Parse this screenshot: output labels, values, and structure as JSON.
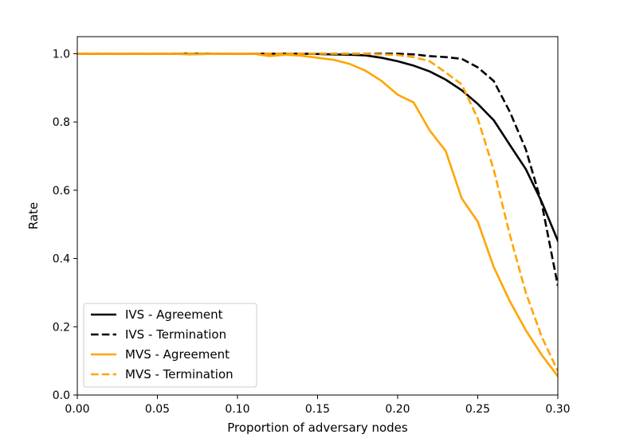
{
  "chart_data": {
    "type": "line",
    "title": "",
    "xlabel": "Proportion of adversary nodes",
    "ylabel": "Rate",
    "xlim": [
      0.0,
      0.3
    ],
    "ylim": [
      0.0,
      1.05
    ],
    "xticks": [
      0.0,
      0.05,
      0.1,
      0.15,
      0.2,
      0.25,
      0.3
    ],
    "xtick_labels": [
      "0.00",
      "0.05",
      "0.10",
      "0.15",
      "0.20",
      "0.25",
      "0.30"
    ],
    "yticks": [
      0.0,
      0.2,
      0.4,
      0.6,
      0.8,
      1.0
    ],
    "ytick_labels": [
      "0.0",
      "0.2",
      "0.4",
      "0.6",
      "0.8",
      "1.0"
    ],
    "grid": false,
    "legend_position": "lower-left",
    "x": [
      0.0,
      0.01,
      0.02,
      0.03,
      0.04,
      0.05,
      0.06,
      0.07,
      0.08,
      0.09,
      0.1,
      0.11,
      0.12,
      0.13,
      0.14,
      0.15,
      0.16,
      0.17,
      0.18,
      0.19,
      0.2,
      0.21,
      0.22,
      0.23,
      0.24,
      0.25,
      0.26,
      0.27,
      0.28,
      0.29,
      0.3
    ],
    "series": [
      {
        "name": "IVS - Agreement",
        "color": "#000000",
        "dash": "solid",
        "values": [
          1.0,
          1.0,
          1.0,
          1.0,
          1.0,
          1.0,
          1.0,
          1.0,
          1.0,
          1.0,
          1.0,
          1.0,
          1.0,
          1.0,
          1.0,
          0.999,
          0.998,
          0.997,
          0.995,
          0.988,
          0.978,
          0.965,
          0.948,
          0.924,
          0.893,
          0.853,
          0.805,
          0.733,
          0.662,
          0.565,
          0.452
        ]
      },
      {
        "name": "IVS - Termination",
        "color": "#000000",
        "dash": "dashed",
        "values": [
          1.0,
          1.0,
          1.0,
          1.0,
          1.0,
          1.0,
          1.0,
          1.0,
          1.0,
          1.0,
          1.0,
          1.0,
          1.0,
          1.0,
          1.0,
          1.0,
          1.0,
          1.0,
          1.0,
          1.0,
          1.0,
          0.998,
          0.993,
          0.99,
          0.985,
          0.96,
          0.92,
          0.83,
          0.72,
          0.56,
          0.32
        ]
      },
      {
        "name": "MVS - Agreement",
        "color": "#ffa500",
        "dash": "solid",
        "values": [
          1.0,
          1.0,
          1.0,
          1.0,
          1.0,
          1.0,
          1.0,
          0.998,
          0.999,
          1.0,
          1.0,
          1.0,
          0.993,
          0.997,
          0.994,
          0.988,
          0.982,
          0.97,
          0.95,
          0.92,
          0.88,
          0.857,
          0.775,
          0.715,
          0.576,
          0.508,
          0.375,
          0.275,
          0.19,
          0.117,
          0.055
        ]
      },
      {
        "name": "MVS - Termination",
        "color": "#ffa500",
        "dash": "dashed",
        "values": [
          1.0,
          1.0,
          1.0,
          1.0,
          1.0,
          1.0,
          1.0,
          1.0,
          1.0,
          1.0,
          1.0,
          1.0,
          1.0,
          1.0,
          1.0,
          1.0,
          1.0,
          1.0,
          1.0,
          0.998,
          0.996,
          0.99,
          0.978,
          0.945,
          0.91,
          0.81,
          0.66,
          0.47,
          0.3,
          0.17,
          0.07
        ]
      }
    ]
  }
}
